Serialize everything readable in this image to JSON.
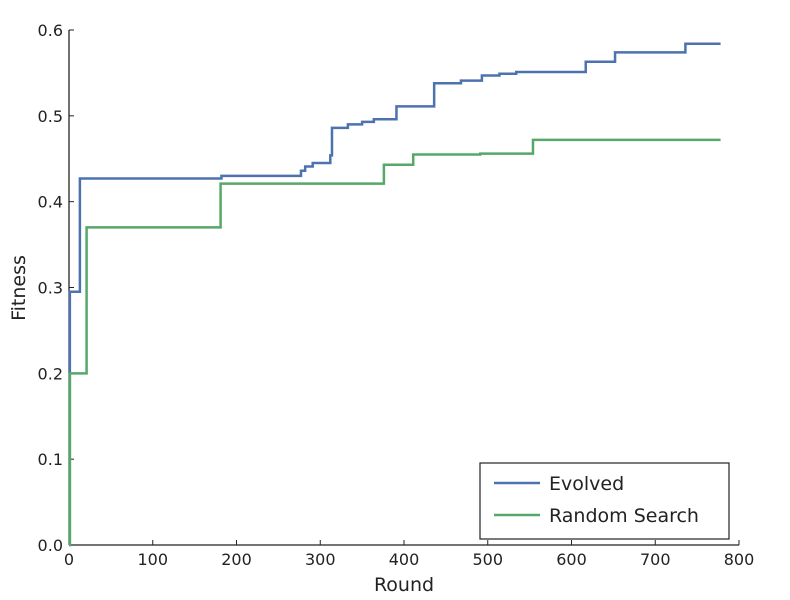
{
  "chart_data": {
    "type": "line",
    "title": "",
    "xlabel": "Round",
    "ylabel": "Fitness",
    "xlim": [
      0,
      800
    ],
    "ylim": [
      0.0,
      0.6
    ],
    "xticks": [
      0,
      100,
      200,
      300,
      400,
      500,
      600,
      700,
      800
    ],
    "yticks": [
      0.0,
      0.1,
      0.2,
      0.3,
      0.4,
      0.5,
      0.6
    ],
    "xtick_labels": [
      "0",
      "100",
      "200",
      "300",
      "400",
      "500",
      "600",
      "700",
      "800"
    ],
    "ytick_labels": [
      "0.0",
      "0.1",
      "0.2",
      "0.3",
      "0.4",
      "0.5",
      "0.6"
    ],
    "grid": false,
    "legend": {
      "position": "bottom-right"
    },
    "step": true,
    "series": [
      {
        "name": "Evolved",
        "color": "#4c72b0",
        "points": [
          [
            0,
            0.0
          ],
          [
            1,
            0.295
          ],
          [
            12,
            0.295
          ],
          [
            13,
            0.427
          ],
          [
            180,
            0.427
          ],
          [
            182,
            0.43
          ],
          [
            274,
            0.43
          ],
          [
            277,
            0.436
          ],
          [
            282,
            0.441
          ],
          [
            291,
            0.445
          ],
          [
            309,
            0.445
          ],
          [
            312,
            0.454
          ],
          [
            314,
            0.486
          ],
          [
            331,
            0.486
          ],
          [
            333,
            0.49
          ],
          [
            348,
            0.49
          ],
          [
            350,
            0.493
          ],
          [
            362,
            0.493
          ],
          [
            364,
            0.496
          ],
          [
            389,
            0.496
          ],
          [
            391,
            0.511
          ],
          [
            434,
            0.511
          ],
          [
            436,
            0.538
          ],
          [
            466,
            0.538
          ],
          [
            468,
            0.541
          ],
          [
            491,
            0.541
          ],
          [
            493,
            0.547
          ],
          [
            512,
            0.547
          ],
          [
            514,
            0.549
          ],
          [
            532,
            0.549
          ],
          [
            534,
            0.551
          ],
          [
            615,
            0.551
          ],
          [
            617,
            0.563
          ],
          [
            650,
            0.563
          ],
          [
            652,
            0.574
          ],
          [
            734,
            0.574
          ],
          [
            736,
            0.584
          ],
          [
            778,
            0.584
          ]
        ]
      },
      {
        "name": "Random Search",
        "color": "#55a868",
        "points": [
          [
            0,
            0.0
          ],
          [
            1,
            0.2
          ],
          [
            19,
            0.2
          ],
          [
            21,
            0.37
          ],
          [
            179,
            0.37
          ],
          [
            181,
            0.421
          ],
          [
            374,
            0.421
          ],
          [
            376,
            0.443
          ],
          [
            409,
            0.443
          ],
          [
            411,
            0.455
          ],
          [
            489,
            0.455
          ],
          [
            491,
            0.456
          ],
          [
            552,
            0.456
          ],
          [
            554,
            0.472
          ],
          [
            778,
            0.472
          ]
        ]
      }
    ]
  }
}
